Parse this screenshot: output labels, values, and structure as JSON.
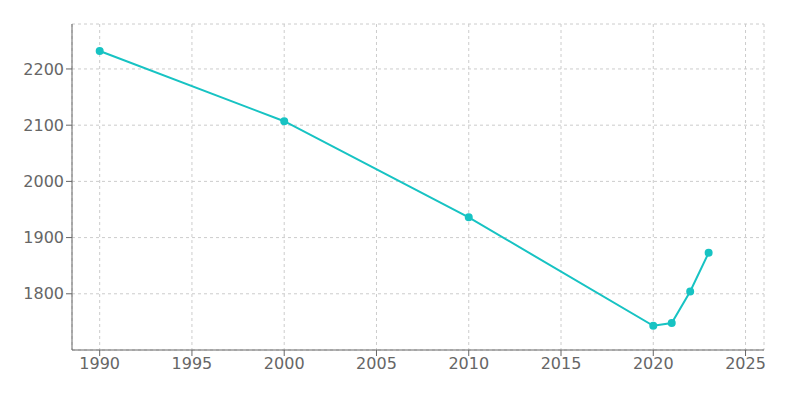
{
  "chart_data": {
    "type": "line",
    "x": [
      1990,
      2000,
      2010,
      2020,
      2021,
      2022,
      2023
    ],
    "values": [
      2232,
      2107,
      1936,
      1743,
      1748,
      1804,
      1873
    ],
    "color": "#17c3c3",
    "marker": "circle",
    "xlim": [
      1988.5,
      2026
    ],
    "ylim": [
      1700,
      2280
    ],
    "xticks": [
      1990,
      1995,
      2000,
      2005,
      2010,
      2015,
      2020,
      2025
    ],
    "yticks": [
      1800,
      1900,
      2000,
      2100,
      2200
    ],
    "grid": true
  }
}
